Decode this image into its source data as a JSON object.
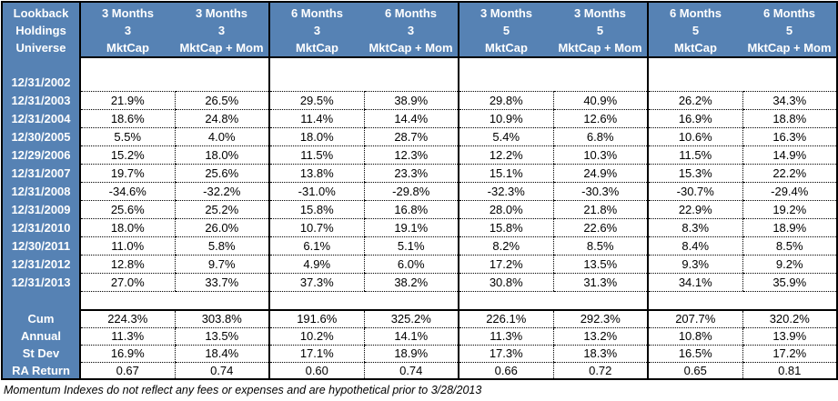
{
  "colors": {
    "header_blue": "#5682B4",
    "border": "#000000",
    "header_text": "#FFFFFF",
    "data_text": "#000000"
  },
  "chart_data": {
    "type": "table",
    "corner_header": [
      "Lookback",
      "Holdings",
      "Universe"
    ],
    "column_headers": [
      {
        "lookback": "3 Months",
        "holdings": "3",
        "universe": "MktCap"
      },
      {
        "lookback": "3 Months",
        "holdings": "3",
        "universe": "MktCap + Mom"
      },
      {
        "lookback": "6 Months",
        "holdings": "3",
        "universe": "MktCap"
      },
      {
        "lookback": "6 Months",
        "holdings": "3",
        "universe": "MktCap + Mom"
      },
      {
        "lookback": "3 Months",
        "holdings": "5",
        "universe": "MktCap"
      },
      {
        "lookback": "3 Months",
        "holdings": "5",
        "universe": "MktCap + Mom"
      },
      {
        "lookback": "6 Months",
        "holdings": "5",
        "universe": "MktCap"
      },
      {
        "lookback": "6 Months",
        "holdings": "5",
        "universe": "MktCap + Mom"
      }
    ],
    "rows": [
      {
        "label": "12/31/2002",
        "values": [
          "",
          "",
          "",
          "",
          "",
          "",
          "",
          ""
        ]
      },
      {
        "label": "12/31/2003",
        "values": [
          "21.9%",
          "26.5%",
          "29.5%",
          "38.9%",
          "29.8%",
          "40.9%",
          "26.2%",
          "34.3%"
        ]
      },
      {
        "label": "12/31/2004",
        "values": [
          "18.6%",
          "24.8%",
          "11.4%",
          "14.4%",
          "10.9%",
          "12.6%",
          "16.9%",
          "18.8%"
        ]
      },
      {
        "label": "12/30/2005",
        "values": [
          "5.5%",
          "4.0%",
          "18.0%",
          "28.7%",
          "5.4%",
          "6.8%",
          "10.6%",
          "16.3%"
        ]
      },
      {
        "label": "12/29/2006",
        "values": [
          "15.2%",
          "18.0%",
          "11.5%",
          "12.3%",
          "12.2%",
          "10.3%",
          "11.5%",
          "14.9%"
        ]
      },
      {
        "label": "12/31/2007",
        "values": [
          "19.7%",
          "25.6%",
          "13.8%",
          "23.3%",
          "15.1%",
          "24.9%",
          "15.3%",
          "22.2%"
        ]
      },
      {
        "label": "12/31/2008",
        "values": [
          "-34.6%",
          "-32.2%",
          "-31.0%",
          "-29.8%",
          "-32.3%",
          "-30.3%",
          "-30.7%",
          "-29.4%"
        ]
      },
      {
        "label": "12/31/2009",
        "values": [
          "25.6%",
          "25.2%",
          "15.8%",
          "16.8%",
          "28.0%",
          "21.8%",
          "22.9%",
          "19.2%"
        ]
      },
      {
        "label": "12/31/2010",
        "values": [
          "18.0%",
          "26.0%",
          "10.7%",
          "19.1%",
          "15.8%",
          "22.6%",
          "8.3%",
          "18.9%"
        ]
      },
      {
        "label": "12/30/2011",
        "values": [
          "11.0%",
          "5.8%",
          "6.1%",
          "5.1%",
          "8.2%",
          "8.5%",
          "8.4%",
          "8.5%"
        ]
      },
      {
        "label": "12/31/2012",
        "values": [
          "12.8%",
          "9.7%",
          "4.9%",
          "6.0%",
          "17.2%",
          "13.5%",
          "9.3%",
          "9.2%"
        ]
      },
      {
        "label": "12/31/2013",
        "values": [
          "27.0%",
          "33.7%",
          "37.3%",
          "38.2%",
          "30.8%",
          "31.3%",
          "34.1%",
          "35.9%"
        ]
      }
    ],
    "summary_rows": [
      {
        "label": "Cum",
        "values": [
          "224.3%",
          "303.8%",
          "191.6%",
          "325.2%",
          "226.1%",
          "292.3%",
          "207.7%",
          "320.2%"
        ]
      },
      {
        "label": "Annual",
        "values": [
          "11.3%",
          "13.5%",
          "10.2%",
          "14.1%",
          "11.3%",
          "13.2%",
          "10.8%",
          "13.9%"
        ]
      },
      {
        "label": "St Dev",
        "values": [
          "16.9%",
          "18.4%",
          "17.1%",
          "18.9%",
          "17.3%",
          "18.3%",
          "16.5%",
          "17.2%"
        ]
      },
      {
        "label": "RA Return",
        "values": [
          "0.67",
          "0.74",
          "0.60",
          "0.74",
          "0.66",
          "0.72",
          "0.65",
          "0.81"
        ]
      }
    ],
    "footnote": "Momentum Indexes do not reflect any fees or expenses and are hypothetical prior to 3/28/2013"
  }
}
